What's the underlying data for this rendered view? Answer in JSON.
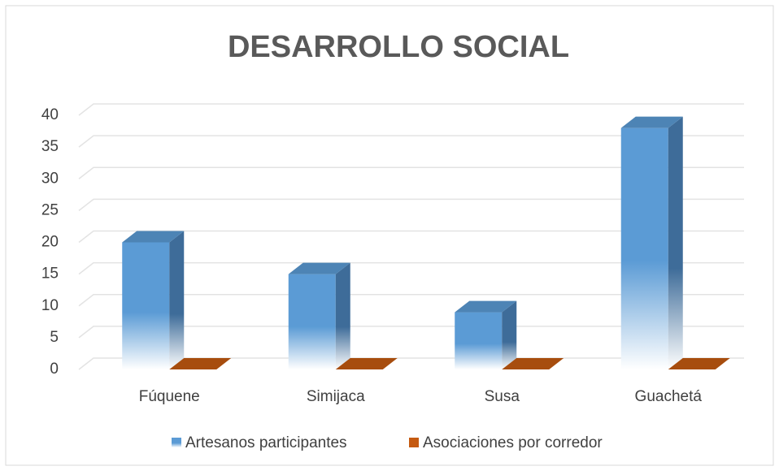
{
  "chart_data": {
    "type": "bar3d",
    "title": "DESARROLLO SOCIAL",
    "categories": [
      "Fúquene",
      "Simijaca",
      "Susa",
      "Guachetá"
    ],
    "series": [
      {
        "name": "Artesanos participantes",
        "color": "#5b9bd5",
        "values": [
          20,
          15,
          9,
          38
        ]
      },
      {
        "name": "Asociaciones por corredor",
        "color": "#c55a11",
        "values": [
          0,
          0,
          0,
          0
        ]
      }
    ],
    "ylim": [
      0,
      40
    ],
    "yticks": [
      0,
      5,
      10,
      15,
      20,
      25,
      30,
      35,
      40
    ],
    "grid": true,
    "legend": "bottom"
  }
}
